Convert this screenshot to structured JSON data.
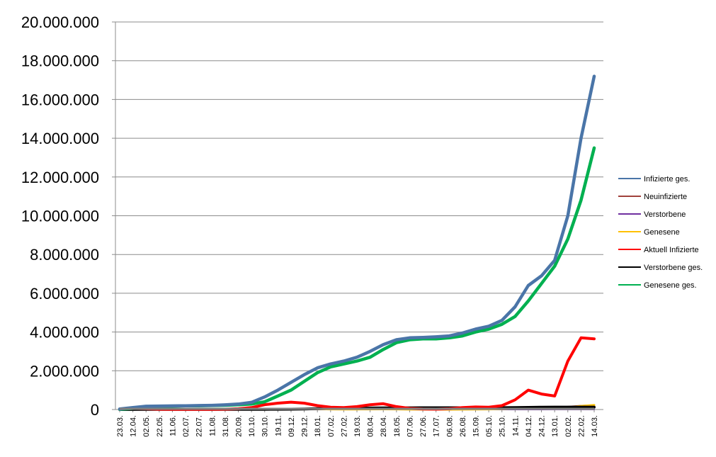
{
  "chart_data": {
    "type": "line",
    "title": "",
    "xlabel": "",
    "ylabel": "",
    "ylim": [
      0,
      20000000
    ],
    "y_ticks": [
      "0",
      "2.000.000",
      "4.000.000",
      "6.000.000",
      "8.000.000",
      "10.000.000",
      "12.000.000",
      "14.000.000",
      "16.000.000",
      "18.000.000",
      "20.000.000"
    ],
    "grid": "horizontal",
    "legend_position": "right",
    "categories": [
      "23.03.",
      "12.04.",
      "02.05.",
      "22.05.",
      "11.06.",
      "02.07.",
      "22.07.",
      "11.08.",
      "31.08.",
      "20.09.",
      "10.10.",
      "30.10.",
      "19.11.",
      "09.12.",
      "29.12.",
      "18.01.",
      "07.02.",
      "27.02.",
      "19.03.",
      "08.04.",
      "28.04.",
      "18.05.",
      "07.06.",
      "27.06.",
      "17.07.",
      "06.08.",
      "26.08.",
      "15.09.",
      "05.10.",
      "25.10.",
      "14.11.",
      "04.12.",
      "24.12.",
      "13.01.",
      "02.02.",
      "22.02.",
      "14.03."
    ],
    "series": [
      {
        "name": "Infizierte ges.",
        "color": "#4a75a8",
        "values": [
          30000,
          100000,
          170000,
          180000,
          185000,
          195000,
          205000,
          215000,
          240000,
          280000,
          370000,
          650000,
          1000000,
          1400000,
          1800000,
          2150000,
          2350000,
          2500000,
          2700000,
          3000000,
          3350000,
          3600000,
          3700000,
          3720000,
          3750000,
          3800000,
          3950000,
          4150000,
          4300000,
          4600000,
          5300000,
          6400000,
          6900000,
          7700000,
          10000000,
          14000000,
          17200000
        ]
      },
      {
        "name": "Neuinfizierte",
        "color": "#a0413c",
        "values": [
          2000,
          5000,
          2000,
          1000,
          1000,
          1000,
          1000,
          2000,
          3000,
          5000,
          10000,
          25000,
          30000,
          30000,
          25000,
          15000,
          10000,
          10000,
          15000,
          20000,
          15000,
          5000,
          2000,
          1000,
          1000,
          2000,
          5000,
          10000,
          20000,
          40000,
          60000,
          50000,
          40000,
          70000,
          150000,
          200000,
          230000
        ]
      },
      {
        "name": "Verstorbene",
        "color": "#7030a0",
        "values": [
          0,
          500,
          300,
          200,
          100,
          100,
          100,
          100,
          100,
          200,
          300,
          600,
          1000,
          1500,
          1500,
          1000,
          600,
          400,
          400,
          500,
          400,
          200,
          100,
          100,
          100,
          100,
          200,
          300,
          500,
          1000,
          1500,
          1500,
          1500,
          2000,
          3000,
          3500,
          3800
        ]
      },
      {
        "name": "Genesene",
        "color": "#ffc000",
        "values": [
          1000,
          3000,
          6000,
          3000,
          1000,
          1000,
          1000,
          1000,
          2000,
          4000,
          6000,
          15000,
          25000,
          30000,
          30000,
          25000,
          15000,
          10000,
          10000,
          15000,
          20000,
          15000,
          5000,
          2000,
          1000,
          1000,
          3000,
          8000,
          15000,
          25000,
          40000,
          50000,
          45000,
          50000,
          100000,
          180000,
          230000
        ]
      },
      {
        "name": "Aktuell Infizierte",
        "color": "#ff0000",
        "values": [
          20000,
          60000,
          40000,
          15000,
          8000,
          6000,
          8000,
          12000,
          20000,
          40000,
          100000,
          250000,
          330000,
          380000,
          330000,
          200000,
          120000,
          100000,
          150000,
          250000,
          300000,
          150000,
          60000,
          30000,
          20000,
          40000,
          100000,
          130000,
          120000,
          200000,
          500000,
          1000000,
          800000,
          700000,
          2500000,
          3700000,
          3650000
        ]
      },
      {
        "name": "Verstorbene ges.",
        "color": "#000000",
        "values": [
          0,
          5000,
          7000,
          8000,
          9000,
          9000,
          9000,
          9000,
          9000,
          9500,
          10000,
          12000,
          14000,
          20000,
          30000,
          45000,
          60000,
          65000,
          70000,
          75000,
          80000,
          85000,
          88000,
          90000,
          90000,
          90000,
          91000,
          92000,
          93000,
          95000,
          100000,
          110000,
          120000,
          125000,
          125000,
          125000,
          125000
        ]
      },
      {
        "name": "Genesene ges.",
        "color": "#00b050",
        "values": [
          10000,
          60000,
          150000,
          165000,
          175000,
          190000,
          195000,
          205000,
          220000,
          250000,
          280000,
          400000,
          700000,
          1000000,
          1450000,
          1900000,
          2200000,
          2350000,
          2500000,
          2700000,
          3100000,
          3450000,
          3600000,
          3650000,
          3650000,
          3700000,
          3800000,
          4000000,
          4150000,
          4400000,
          4800000,
          5600000,
          6500000,
          7400000,
          8800000,
          10800000,
          13500000
        ]
      }
    ]
  }
}
